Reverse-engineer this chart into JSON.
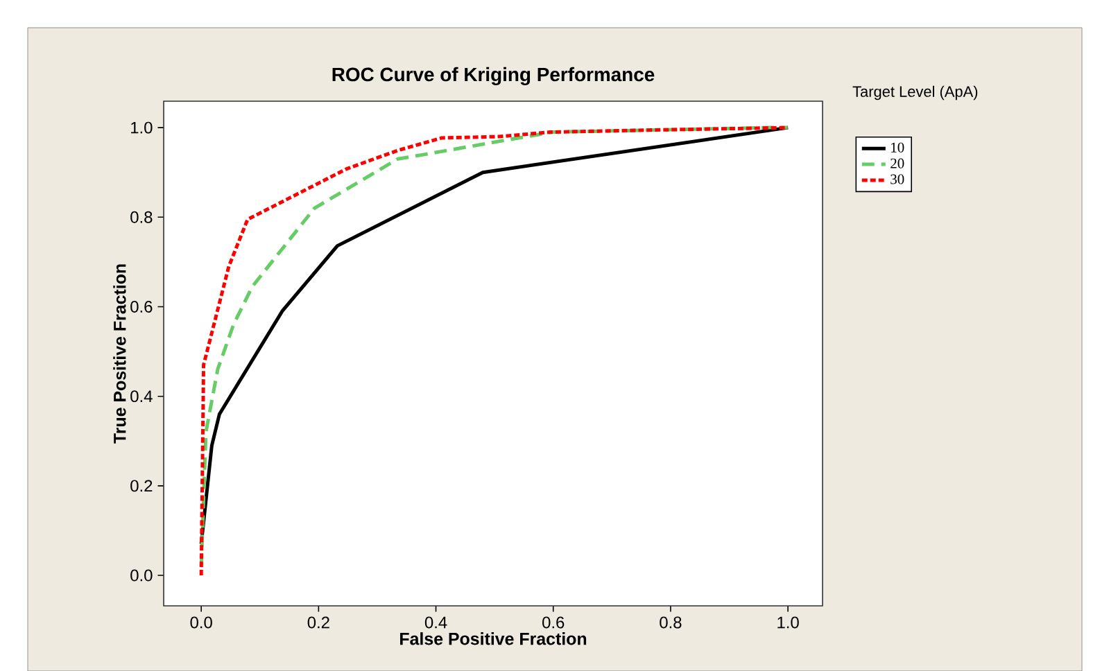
{
  "chart_data": {
    "type": "line",
    "title": "ROC Curve of Kriging Performance",
    "xlabel": "False Positive Fraction",
    "ylabel": "True Positive Fraction",
    "legend_title": "Target Level (ApA)",
    "legend": "right",
    "xlim": [
      -0.064,
      1.059
    ],
    "ylim": [
      -0.068,
      1.059
    ],
    "xticks": [
      {
        "value": 0,
        "label": "0.0"
      },
      {
        "value": 0.2,
        "label": "0.2"
      },
      {
        "value": 0.4,
        "label": "0.4"
      },
      {
        "value": 0.6,
        "label": "0.6"
      },
      {
        "value": 0.8,
        "label": "0.8"
      },
      {
        "value": 1,
        "label": "1.0"
      }
    ],
    "yticks": [
      {
        "value": 0,
        "label": "0.0"
      },
      {
        "value": 0.2,
        "label": "0.2"
      },
      {
        "value": 0.4,
        "label": "0.4"
      },
      {
        "value": 0.6,
        "label": "0.6"
      },
      {
        "value": 0.8,
        "label": "0.8"
      },
      {
        "value": 1,
        "label": "1.0"
      }
    ],
    "series": [
      {
        "name": "10",
        "color": "#000000",
        "line_style": "solid",
        "x": [
          0,
          0.018,
          0.031,
          0.138,
          0.232,
          0.48,
          1
        ],
        "values": [
          0.07,
          0.29,
          0.36,
          0.59,
          0.736,
          0.9,
          1
        ]
      },
      {
        "name": "20",
        "color": "#66cc66",
        "line_style": "dashed",
        "x": [
          0,
          0.008,
          0.028,
          0.055,
          0.087,
          0.193,
          0.335,
          0.38,
          0.532,
          0.6,
          0.97,
          1
        ],
        "values": [
          0.02,
          0.32,
          0.46,
          0.56,
          0.645,
          0.82,
          0.93,
          0.94,
          0.975,
          0.99,
          1,
          1
        ]
      },
      {
        "name": "30",
        "color": "#ff0000",
        "line_style": "dotted",
        "x": [
          0,
          0.004,
          0.047,
          0.079,
          0.248,
          0.335,
          0.41,
          0.508,
          0.595,
          0.784,
          1
        ],
        "values": [
          0,
          0.47,
          0.69,
          0.795,
          0.908,
          0.949,
          0.977,
          0.98,
          0.99,
          0.995,
          1
        ]
      }
    ]
  }
}
